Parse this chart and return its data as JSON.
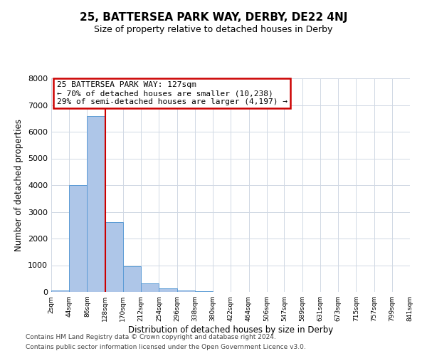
{
  "title": "25, BATTERSEA PARK WAY, DERBY, DE22 4NJ",
  "subtitle": "Size of property relative to detached houses in Derby",
  "xlabel": "Distribution of detached houses by size in Derby",
  "ylabel": "Number of detached properties",
  "bar_color": "#aec6e8",
  "bar_edge_color": "#5b9bd5",
  "background_color": "#ffffff",
  "grid_color": "#d0d8e4",
  "bin_edges": [
    2,
    44,
    86,
    128,
    170,
    212,
    254,
    296,
    338,
    380,
    422,
    464,
    506,
    547,
    589,
    631,
    673,
    715,
    757,
    799,
    841
  ],
  "bin_labels": [
    "2sqm",
    "44sqm",
    "86sqm",
    "128sqm",
    "170sqm",
    "212sqm",
    "254sqm",
    "296sqm",
    "338sqm",
    "380sqm",
    "422sqm",
    "464sqm",
    "506sqm",
    "547sqm",
    "589sqm",
    "631sqm",
    "673sqm",
    "715sqm",
    "757sqm",
    "799sqm",
    "841sqm"
  ],
  "bar_heights": [
    50,
    4000,
    6580,
    2620,
    960,
    310,
    130,
    60,
    30,
    0,
    0,
    0,
    0,
    0,
    0,
    0,
    0,
    0,
    0,
    0
  ],
  "property_line_x": 128,
  "property_line_color": "#cc0000",
  "annotation_box_edge_color": "#cc0000",
  "annotation_lines": [
    "25 BATTERSEA PARK WAY: 127sqm",
    "← 70% of detached houses are smaller (10,238)",
    "29% of semi-detached houses are larger (4,197) →"
  ],
  "ylim": [
    0,
    8000
  ],
  "yticks": [
    0,
    1000,
    2000,
    3000,
    4000,
    5000,
    6000,
    7000,
    8000
  ],
  "footer_lines": [
    "Contains HM Land Registry data © Crown copyright and database right 2024.",
    "Contains public sector information licensed under the Open Government Licence v3.0."
  ]
}
